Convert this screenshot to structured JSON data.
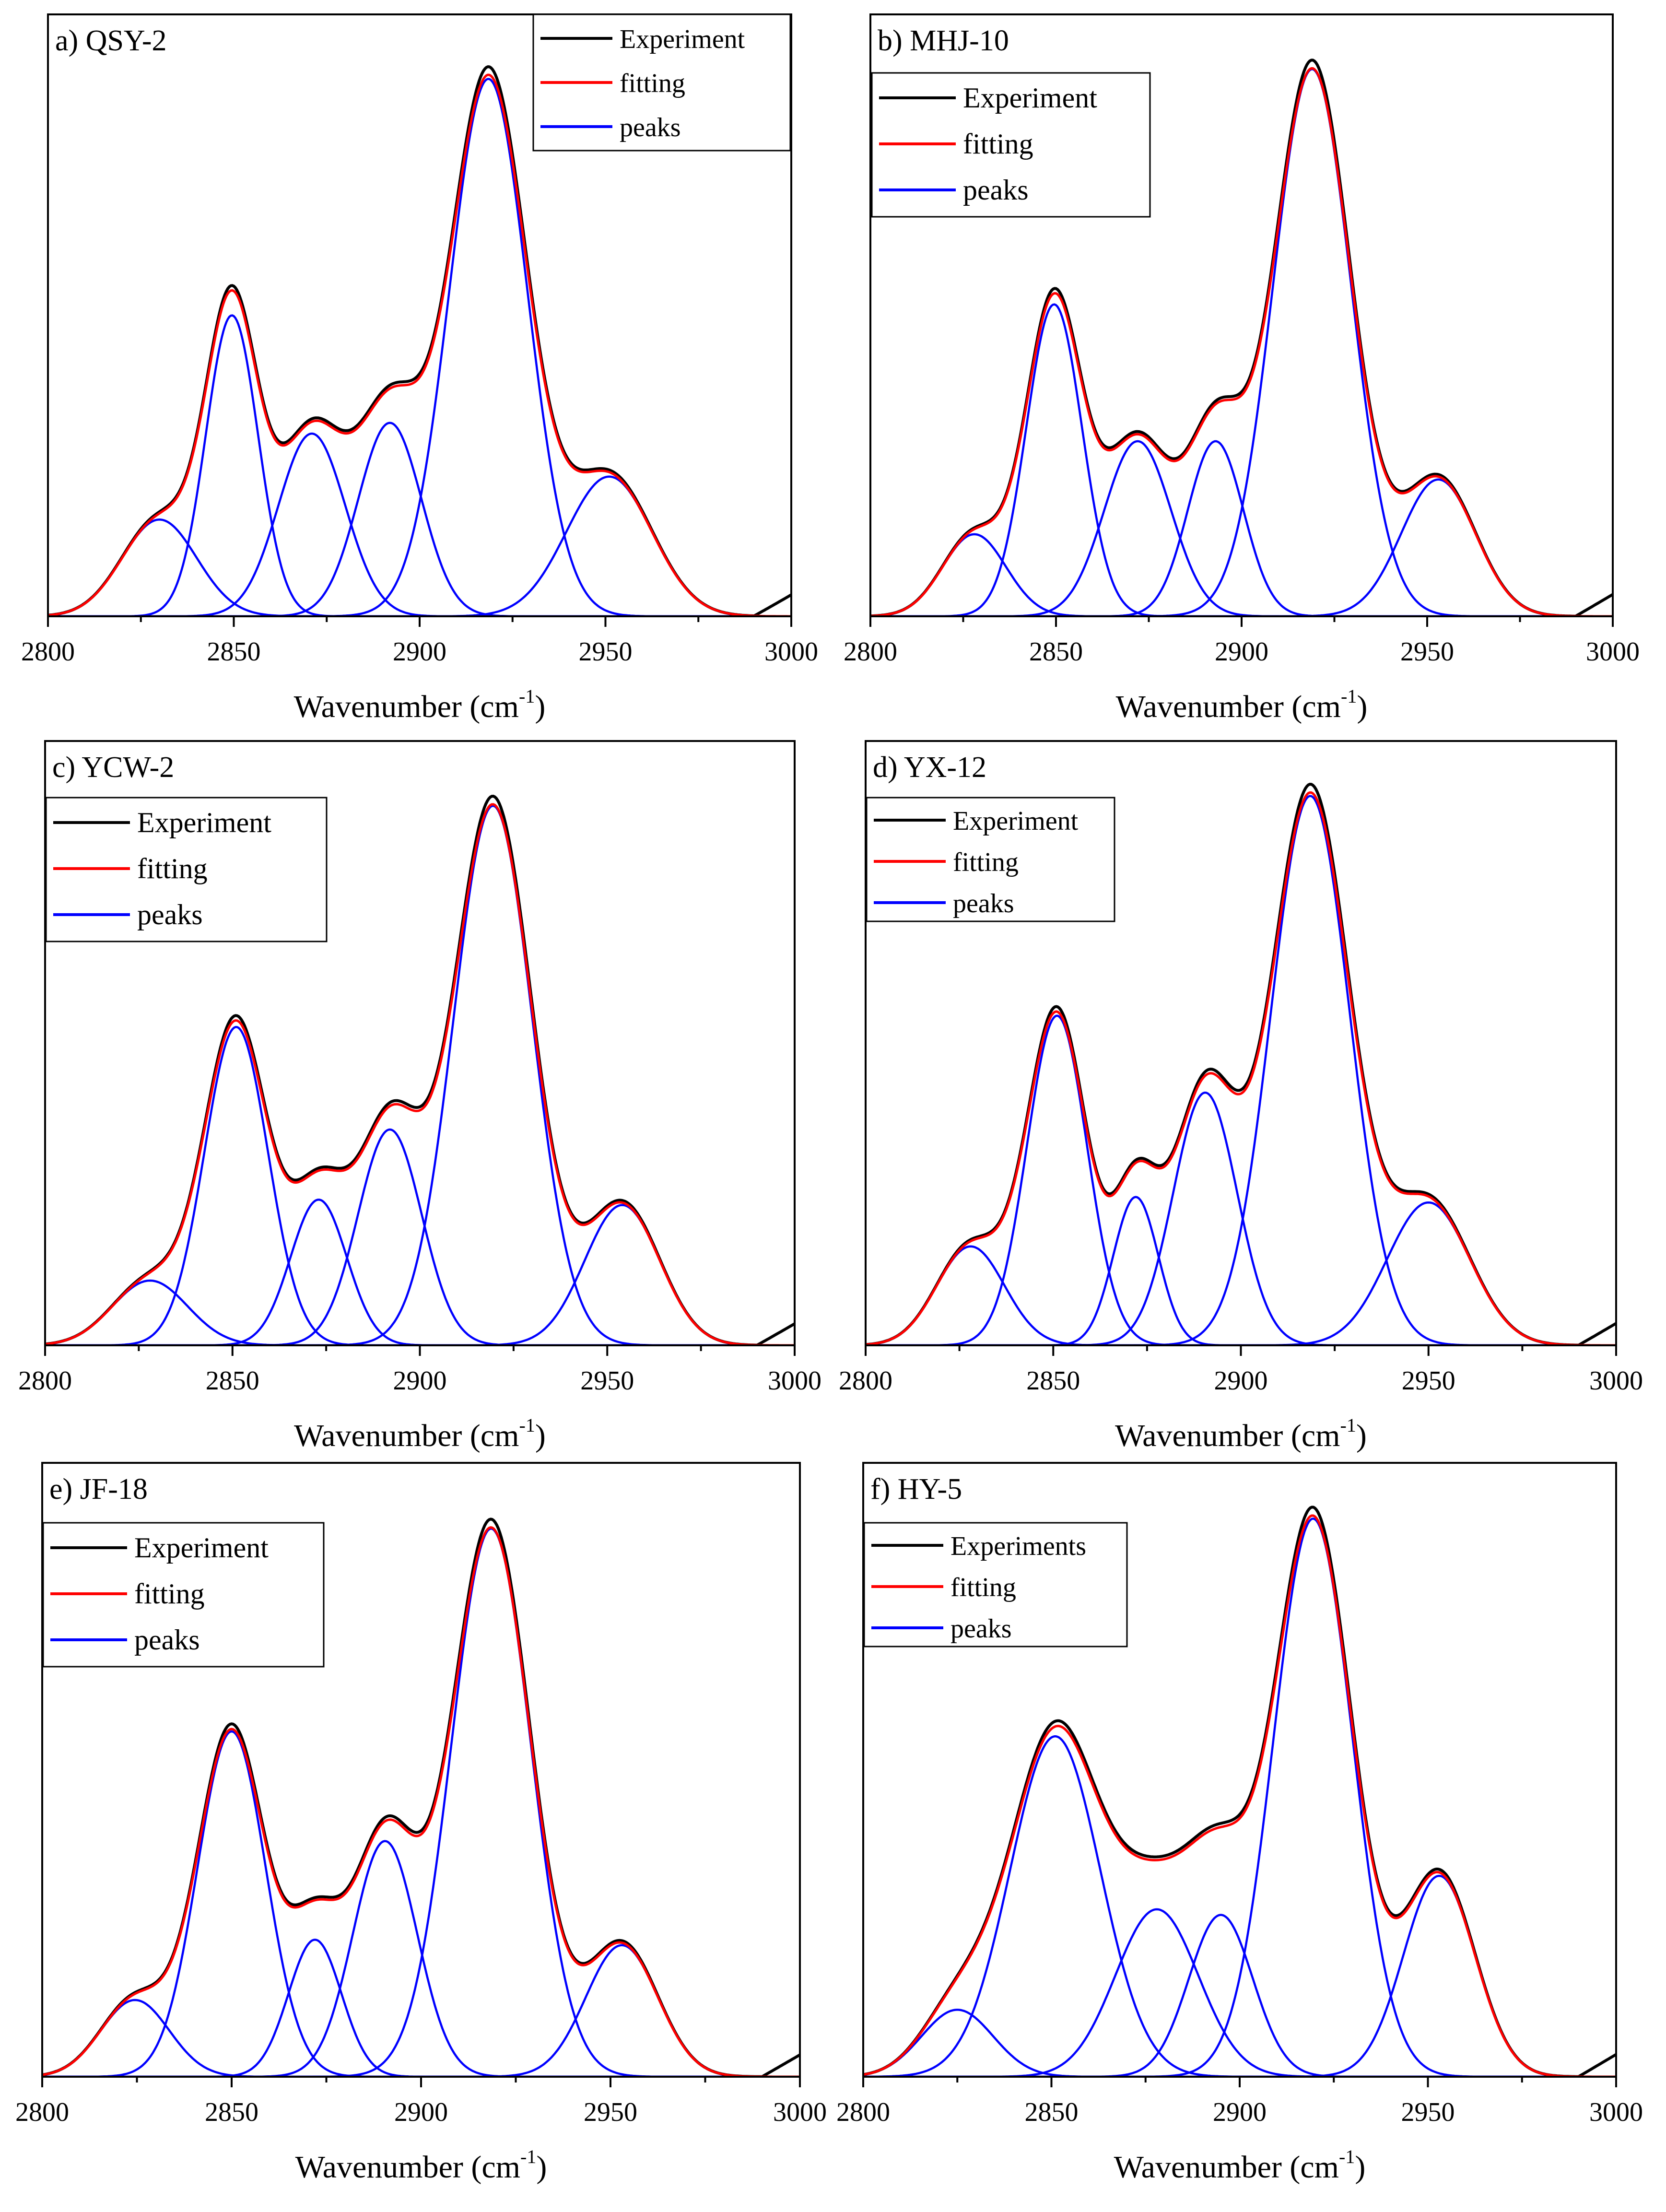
{
  "chart_data": [
    {
      "id": "a",
      "type": "line",
      "title": "a) QSY-2",
      "xlabel": "Wavenumber (cm-1)",
      "xlabel_main": "Wavenumber (cm",
      "xlabel_sup": "-1",
      "xlabel_close": ")",
      "ylabel": "",
      "xlim": [
        2800,
        3000
      ],
      "ylim": [
        0,
        1.12
      ],
      "xticks": [
        2800,
        2850,
        2900,
        2950,
        3000
      ],
      "xtick_labels": [
        "2800",
        "2850",
        "2900",
        "2950",
        "3000"
      ],
      "legend": {
        "position": "top-right",
        "labels": [
          "Experiment",
          "fitting",
          "peaks"
        ]
      },
      "peaks": [
        {
          "center": 2830,
          "height": 0.18,
          "sigma": 10
        },
        {
          "center": 2849.5,
          "height": 0.56,
          "sigma": 7
        },
        {
          "center": 2871,
          "height": 0.34,
          "sigma": 9
        },
        {
          "center": 2892,
          "height": 0.36,
          "sigma": 8.5
        },
        {
          "center": 2918.5,
          "height": 1.0,
          "sigma": 10.5
        },
        {
          "center": 2951,
          "height": 0.26,
          "sigma": 11.5
        }
      ]
    },
    {
      "id": "b",
      "type": "line",
      "title": "b) MHJ-10",
      "xlabel": "Wavenumber (cm-1)",
      "xlabel_main": "Wavenumber (cm",
      "xlabel_sup": "-1",
      "xlabel_close": ")",
      "ylabel": "",
      "xlim": [
        2800,
        3000
      ],
      "ylim": [
        0,
        1.1
      ],
      "xticks": [
        2800,
        2850,
        2900,
        2950,
        3000
      ],
      "xtick_labels": [
        "2800",
        "2850",
        "2900",
        "2950",
        "3000"
      ],
      "legend": {
        "position": "top-left",
        "labels": [
          "Experiment",
          "fitting",
          "peaks"
        ]
      },
      "peaks": [
        {
          "center": 2828,
          "height": 0.15,
          "sigma": 8.5
        },
        {
          "center": 2849.5,
          "height": 0.57,
          "sigma": 7.5
        },
        {
          "center": 2872,
          "height": 0.32,
          "sigma": 9
        },
        {
          "center": 2893,
          "height": 0.32,
          "sigma": 7.5
        },
        {
          "center": 2919,
          "height": 1.0,
          "sigma": 10.5
        },
        {
          "center": 2953,
          "height": 0.25,
          "sigma": 10
        }
      ]
    },
    {
      "id": "c",
      "type": "line",
      "title": "c) YCW-2",
      "xlabel": "Wavenumber (cm-1)",
      "xlabel_main": "Wavenumber (cm",
      "xlabel_sup": "-1",
      "xlabel_close": ")",
      "ylabel": "",
      "xlim": [
        2800,
        3000
      ],
      "ylim": [
        0,
        1.12
      ],
      "xticks": [
        2800,
        2850,
        2900,
        2950,
        3000
      ],
      "xtick_labels": [
        "2800",
        "2850",
        "2900",
        "2950",
        "3000"
      ],
      "legend": {
        "position": "top-left",
        "labels": [
          "Experiment",
          "fitting",
          "peaks"
        ]
      },
      "peaks": [
        {
          "center": 2828,
          "height": 0.12,
          "sigma": 10
        },
        {
          "center": 2851,
          "height": 0.59,
          "sigma": 8.5
        },
        {
          "center": 2873,
          "height": 0.27,
          "sigma": 7.5
        },
        {
          "center": 2892,
          "height": 0.4,
          "sigma": 8.5
        },
        {
          "center": 2919.5,
          "height": 1.0,
          "sigma": 10.5
        },
        {
          "center": 2954,
          "height": 0.26,
          "sigma": 10
        }
      ]
    },
    {
      "id": "d",
      "type": "line",
      "title": "d) YX-12",
      "xlabel": "Wavenumber (cm-1)",
      "xlabel_main": "Wavenumber (cm",
      "xlabel_sup": "-1",
      "xlabel_close": ")",
      "ylabel": "",
      "xlim": [
        2800,
        3000
      ],
      "ylim": [
        0,
        1.1
      ],
      "xticks": [
        2800,
        2850,
        2900,
        2950,
        3000
      ],
      "xtick_labels": [
        "2800",
        "2850",
        "2900",
        "2950",
        "3000"
      ],
      "legend": {
        "position": "top-left",
        "labels": [
          "Experiment",
          "fitting",
          "peaks"
        ]
      },
      "peaks": [
        {
          "center": 2828,
          "height": 0.18,
          "sigma": 9
        },
        {
          "center": 2851,
          "height": 0.6,
          "sigma": 8
        },
        {
          "center": 2872,
          "height": 0.27,
          "sigma": 6
        },
        {
          "center": 2890.5,
          "height": 0.46,
          "sigma": 8.5
        },
        {
          "center": 2918.5,
          "height": 1.0,
          "sigma": 10.5
        },
        {
          "center": 2950,
          "height": 0.26,
          "sigma": 11
        }
      ]
    },
    {
      "id": "e",
      "type": "line",
      "title": "e) JF-18",
      "xlabel": "Wavenumber (cm-1)",
      "xlabel_main": "Wavenumber (cm",
      "xlabel_sup": "-1",
      "xlabel_close": ")",
      "ylabel": "",
      "xlim": [
        2800,
        3000
      ],
      "ylim": [
        0,
        1.12
      ],
      "xticks": [
        2800,
        2850,
        2900,
        2950,
        3000
      ],
      "xtick_labels": [
        "2800",
        "2850",
        "2900",
        "2950",
        "3000"
      ],
      "legend": {
        "position": "top-left",
        "labels": [
          "Experiment",
          "fitting",
          "peaks"
        ]
      },
      "peaks": [
        {
          "center": 2824.5,
          "height": 0.14,
          "sigma": 9
        },
        {
          "center": 2850,
          "height": 0.63,
          "sigma": 9
        },
        {
          "center": 2872,
          "height": 0.25,
          "sigma": 7
        },
        {
          "center": 2890.5,
          "height": 0.43,
          "sigma": 8.5
        },
        {
          "center": 2918.5,
          "height": 1.0,
          "sigma": 10.5
        },
        {
          "center": 2953,
          "height": 0.24,
          "sigma": 9.5
        }
      ]
    },
    {
      "id": "f",
      "type": "line",
      "title": "f) HY-5",
      "xlabel": "Wavenumber (cm-1)",
      "xlabel_main": "Wavenumber (cm",
      "xlabel_sup": "-1",
      "xlabel_close": ")",
      "ylabel": "",
      "xlim": [
        2800,
        3000
      ],
      "ylim": [
        0,
        1.1
      ],
      "xticks": [
        2800,
        2850,
        2900,
        2950,
        3000
      ],
      "xtick_labels": [
        "2800",
        "2850",
        "2900",
        "2950",
        "3000"
      ],
      "legend": {
        "position": "top-left",
        "labels": [
          "Experiments",
          "fitting",
          "peaks"
        ]
      },
      "peaks": [
        {
          "center": 2825,
          "height": 0.12,
          "sigma": 9.5
        },
        {
          "center": 2851,
          "height": 0.61,
          "sigma": 12
        },
        {
          "center": 2878,
          "height": 0.3,
          "sigma": 11
        },
        {
          "center": 2895,
          "height": 0.29,
          "sigma": 8.5
        },
        {
          "center": 2919.5,
          "height": 1.0,
          "sigma": 10.5
        },
        {
          "center": 2953,
          "height": 0.36,
          "sigma": 9.5
        }
      ]
    }
  ],
  "colors": {
    "experiment": "#000000",
    "fitting": "#ff0000",
    "peaks": "#0000ff",
    "axis": "#000000"
  }
}
